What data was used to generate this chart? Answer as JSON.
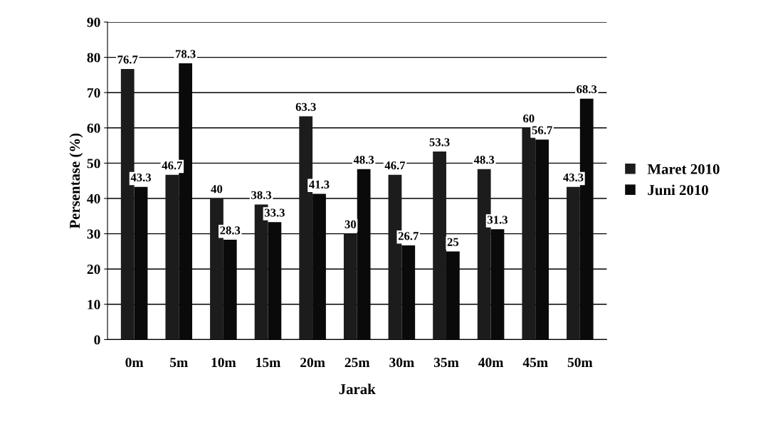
{
  "chart_data": {
    "type": "bar",
    "xlabel": "Jarak",
    "ylabel": "Persentase (%)",
    "categories": [
      "0m",
      "5m",
      "10m",
      "15m",
      "20m",
      "25m",
      "30m",
      "35m",
      "40m",
      "45m",
      "50m"
    ],
    "series": [
      {
        "name": "Maret 2010",
        "color": "#1c1c1c",
        "values": [
          76.7,
          46.7,
          40,
          38.3,
          63.3,
          30,
          46.7,
          53.3,
          48.3,
          60,
          43.3
        ]
      },
      {
        "name": "Juni 2010",
        "color": "#0a0a0a",
        "values": [
          43.3,
          78.3,
          28.3,
          33.3,
          41.3,
          48.3,
          26.7,
          25,
          31.3,
          56.7,
          68.3
        ]
      }
    ],
    "ylim": [
      0,
      90
    ],
    "yticks": [
      0,
      10,
      20,
      30,
      40,
      50,
      60,
      70,
      80,
      90
    ],
    "grid": "y",
    "legend": "right",
    "data_labels": true
  }
}
